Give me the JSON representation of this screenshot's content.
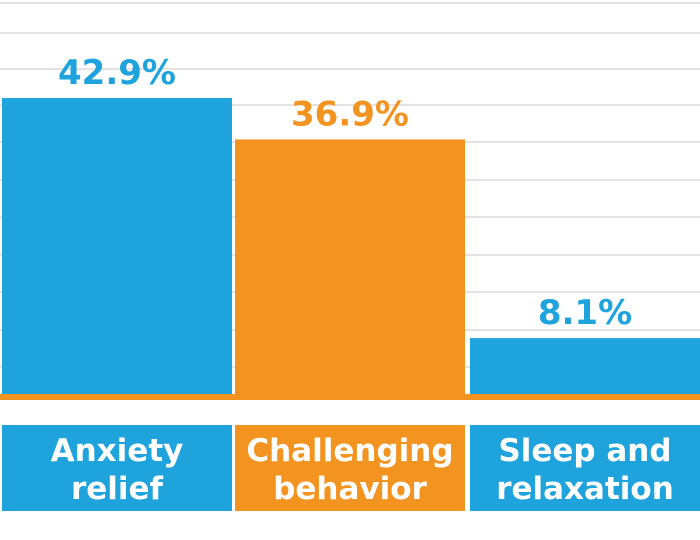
{
  "chart_data": {
    "type": "bar",
    "categories": [
      "Anxiety relief",
      "Challenging behavior",
      "Sleep and relaxation"
    ],
    "category_lines": [
      [
        "Anxiety",
        "relief"
      ],
      [
        "Challenging",
        "behavior"
      ],
      [
        "Sleep and",
        "relaxation"
      ]
    ],
    "values": [
      42.9,
      36.9,
      8.1
    ],
    "value_labels": [
      "42.9%",
      "36.9%",
      "8.1%"
    ],
    "bar_colors": [
      "#1fa3dc",
      "#f39421",
      "#1fa3dc"
    ],
    "label_colors": [
      "#1fa3dc",
      "#f39421",
      "#1fa3dc"
    ],
    "ylim": [
      0,
      60
    ],
    "grid": true,
    "title": "",
    "xlabel": "",
    "ylabel": ""
  }
}
